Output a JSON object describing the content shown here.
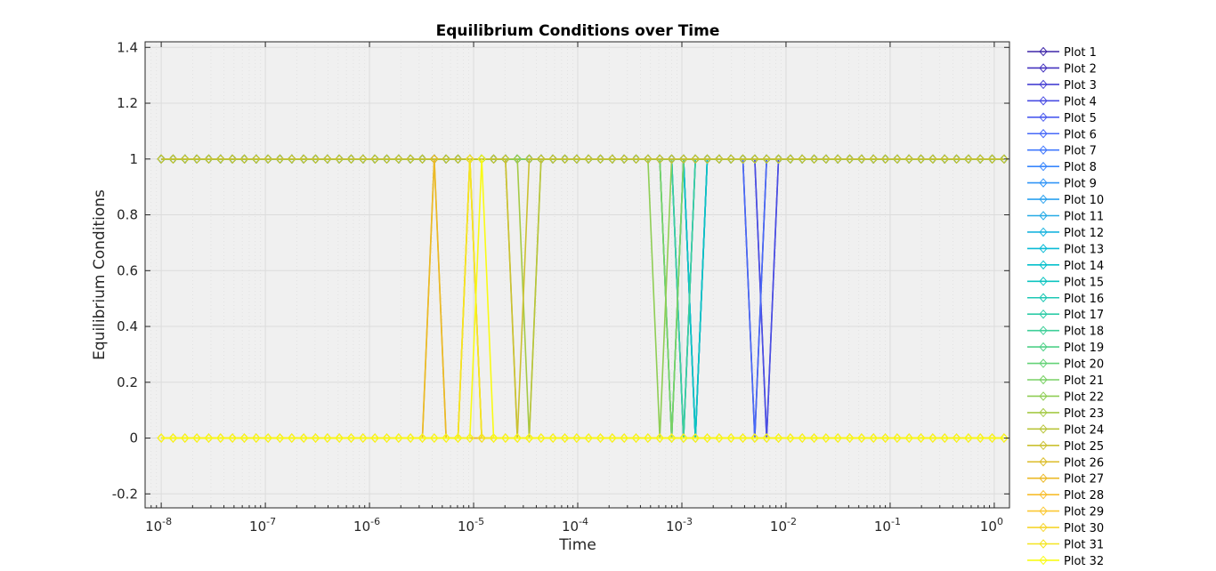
{
  "colors": {
    "plot_background": "#f0f0f0",
    "grid": "#dcdcdc",
    "axis": "#262626",
    "series_palette": [
      "#3e26a8",
      "#4433bf",
      "#4740d3",
      "#4a4de3",
      "#4a5bef",
      "#4769f8",
      "#4178fd",
      "#3987fd",
      "#3195f7",
      "#2ba2ef",
      "#27abe6",
      "#1ab4df",
      "#0bbbd6",
      "#06c0cc",
      "#0dc4c0",
      "#1ec8b4",
      "#2ecca7",
      "#3ecf98",
      "#4fd188",
      "#63d277",
      "#79d165",
      "#8fce55",
      "#a5ca46",
      "#b9c53b",
      "#cbc131",
      "#dcbd2a",
      "#ecb926",
      "#f8bd2d",
      "#fbc833",
      "#f6d52d",
      "#f4e521",
      "#f9fb15"
    ]
  },
  "chart_data": {
    "type": "line",
    "title": "Equilibrium Conditions over Time",
    "xlabel": "Time",
    "ylabel": "Equilibrium Conditions",
    "x_scale": "log",
    "xlim": [
      7e-09,
      1.4
    ],
    "ylim": [
      -0.25,
      1.42
    ],
    "y_ticks": [
      "-0.2",
      "0",
      "0.2",
      "0.4",
      "0.6",
      "0.8",
      "1",
      "1.2",
      "1.4"
    ],
    "y_tick_values": [
      -0.2,
      0,
      0.2,
      0.4,
      0.6,
      0.8,
      1,
      1.2,
      1.4
    ],
    "x_ticks": [
      {
        "base": "10",
        "exp": "-8",
        "value": 1e-08
      },
      {
        "base": "10",
        "exp": "-7",
        "value": 1e-07
      },
      {
        "base": "10",
        "exp": "-6",
        "value": 1e-06
      },
      {
        "base": "10",
        "exp": "-5",
        "value": 1e-05
      },
      {
        "base": "10",
        "exp": "-4",
        "value": 0.0001
      },
      {
        "base": "10",
        "exp": "-3",
        "value": 0.001
      },
      {
        "base": "10",
        "exp": "-2",
        "value": 0.01
      },
      {
        "base": "10",
        "exp": "-1",
        "value": 0.1
      },
      {
        "base": "10",
        "exp": "0",
        "value": 1
      }
    ],
    "grid": true,
    "minor_grid": true,
    "legend_position": "outside-right",
    "marker": "diamond",
    "marker_interval_log10": 0.114,
    "x_start": 1e-08,
    "x_end": 1.3,
    "series": [
      {
        "name": "Plot 1",
        "transitions": [
          [
            0.0048,
            1,
            0
          ],
          [
            0.0058,
            0,
            1
          ]
        ]
      },
      {
        "name": "Plot 2",
        "transitions": [
          [
            0.0052,
            1,
            0
          ],
          [
            0.0063,
            0,
            1
          ]
        ]
      },
      {
        "name": "Plot 3",
        "transitions": [
          [
            0.0058,
            1,
            0
          ],
          [
            0.0072,
            0,
            1
          ]
        ]
      },
      {
        "name": "Plot 4",
        "transitions": [
          [
            0.0063,
            1,
            0
          ],
          [
            0.0078,
            0,
            1
          ]
        ]
      },
      {
        "name": "Plot 5",
        "transitions": [
          [
            0.0066,
            1,
            0
          ],
          [
            0.008,
            0,
            1
          ]
        ]
      },
      {
        "name": "Plot 6",
        "transitions": [
          [
            0.0047,
            1,
            0
          ],
          [
            0.0055,
            0,
            1
          ]
        ]
      },
      {
        "name": "Plot 7",
        "transitions": [
          [
            0.0012,
            1,
            0
          ],
          [
            0.0016,
            0,
            1
          ]
        ]
      },
      {
        "name": "Plot 8",
        "transitions": [
          [
            0.0013,
            1,
            0
          ],
          [
            0.0017,
            0,
            1
          ]
        ]
      },
      {
        "name": "Plot 9",
        "transitions": [
          [
            0.0011,
            1,
            0
          ],
          [
            0.0015,
            0,
            1
          ]
        ]
      },
      {
        "name": "Plot 10",
        "transitions": [
          [
            0.00095,
            1,
            0
          ],
          [
            0.00125,
            0,
            1
          ]
        ]
      },
      {
        "name": "Plot 11",
        "transitions": [
          [
            0.0009,
            1,
            0
          ],
          [
            0.0012,
            0,
            1
          ]
        ]
      },
      {
        "name": "Plot 12",
        "transitions": [
          [
            0.00085,
            1,
            0
          ],
          [
            0.0011,
            0,
            1
          ]
        ]
      },
      {
        "name": "Plot 13",
        "transitions": [
          [
            0.0008,
            1,
            0
          ],
          [
            0.001,
            0,
            1
          ]
        ]
      },
      {
        "name": "Plot 14",
        "transitions": [
          [
            0.0013,
            1,
            0
          ],
          [
            0.0017,
            0,
            1
          ]
        ]
      },
      {
        "name": "Plot 15",
        "transitions": [
          [
            0.0012,
            1,
            0
          ],
          [
            0.0016,
            0,
            1
          ]
        ]
      },
      {
        "name": "Plot 16",
        "transitions": [
          [
            0.00075,
            1,
            0
          ],
          [
            0.00095,
            0,
            1
          ]
        ]
      },
      {
        "name": "Plot 17",
        "transitions": [
          [
            0.0007,
            1,
            0
          ],
          [
            0.0009,
            0,
            1
          ]
        ]
      },
      {
        "name": "Plot 18",
        "transitions": [
          [
            0.00085,
            1,
            0
          ],
          [
            0.0011,
            0,
            1
          ]
        ]
      },
      {
        "name": "Plot 19",
        "transitions": [
          [
            0.0008,
            1,
            0
          ],
          [
            0.001,
            0,
            1
          ]
        ]
      },
      {
        "name": "Plot 20",
        "transitions": [
          [
            0.00062,
            1,
            0
          ],
          [
            0.0008,
            0,
            1
          ]
        ]
      },
      {
        "name": "Plot 21",
        "transitions": [
          [
            0.00065,
            1,
            0
          ],
          [
            0.00085,
            0,
            1
          ]
        ]
      },
      {
        "name": "Plot 22",
        "transitions": [
          [
            0.0006,
            1,
            0
          ],
          [
            0.00078,
            0,
            1
          ]
        ]
      },
      {
        "name": "Plot 23",
        "transitions": [
          [
            2.7e-05,
            1,
            0
          ],
          [
            3.6e-05,
            0,
            1
          ]
        ]
      },
      {
        "name": "Plot 24",
        "transitions": [
          [
            2.6e-05,
            1,
            0
          ],
          [
            3.5e-05,
            0,
            1
          ]
        ]
      },
      {
        "name": "Plot 25",
        "transitions": [
          [
            2.5e-05,
            1,
            0
          ],
          [
            3.4e-05,
            0,
            1
          ]
        ]
      },
      {
        "name": "Plot 26",
        "transitions": [
          [
            3.6e-06,
            0,
            1
          ],
          [
            4.6e-06,
            1,
            0
          ]
        ]
      },
      {
        "name": "Plot 27",
        "transitions": [
          [
            3.4e-06,
            0,
            1
          ],
          [
            4.4e-06,
            1,
            0
          ]
        ]
      },
      {
        "name": "Plot 28",
        "transitions": [
          [
            7.8e-06,
            0,
            1
          ],
          [
            9.5e-06,
            1,
            0
          ]
        ]
      },
      {
        "name": "Plot 29",
        "transitions": [
          [
            7.6e-06,
            0,
            1
          ],
          [
            9.3e-06,
            1,
            0
          ]
        ]
      },
      {
        "name": "Plot 30",
        "transitions": [
          [
            8e-06,
            0,
            1
          ],
          [
            9.8e-06,
            1,
            0
          ]
        ]
      },
      {
        "name": "Plot 31",
        "transitions": [
          [
            7.9e-06,
            0,
            1
          ],
          [
            9.7e-06,
            1,
            0
          ]
        ]
      },
      {
        "name": "Plot 32",
        "transitions": [
          [
            1.05e-05,
            0,
            1
          ],
          [
            1.3e-05,
            1,
            0
          ]
        ]
      }
    ]
  }
}
